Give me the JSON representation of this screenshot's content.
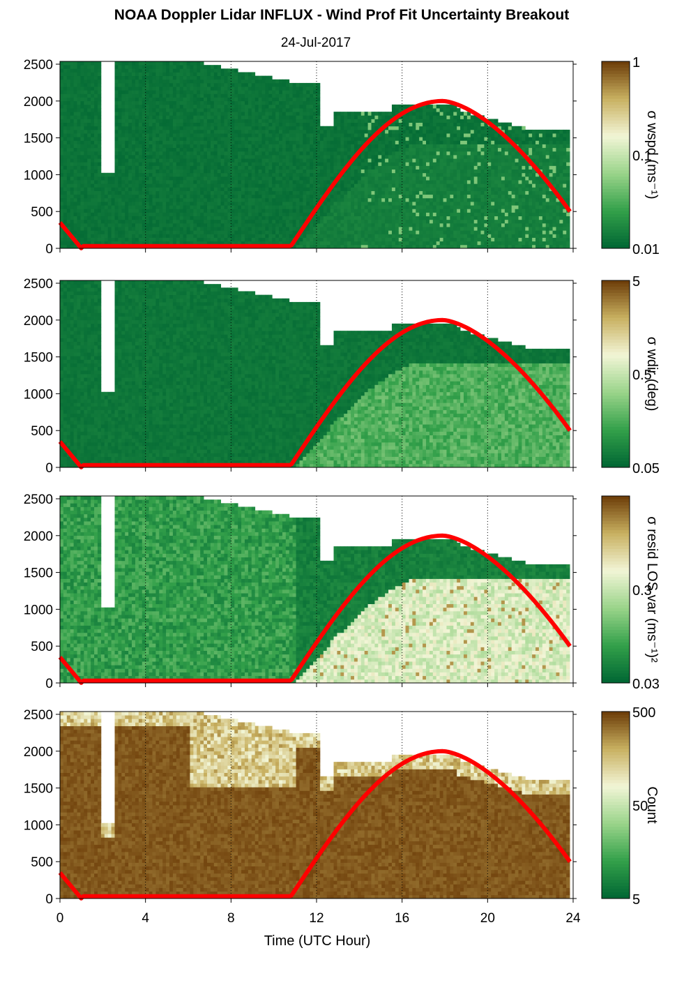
{
  "title": "NOAA Doppler Lidar INFLUX - Wind Prof Fit Uncertainty Breakout",
  "subtitle": "24-Jul-2017",
  "colors": {
    "dark_green": "#006633",
    "mid_green": "#33a04a",
    "light_green": "#9ad48a",
    "pale": "#f2f5d6",
    "tan": "#c8b060",
    "brown": "#6b3b07",
    "sun_curve": "#ff0000",
    "missing": "#ffffff"
  },
  "chart_data": [
    {
      "type": "heatmap",
      "panel": "wspd",
      "x_range": [
        0,
        24
      ],
      "y_range": [
        0,
        2500
      ],
      "y_ticks": [
        "0",
        "500",
        "1000",
        "1500",
        "2000",
        "2500"
      ],
      "x_grid_hours": [
        4,
        8,
        12,
        16,
        20,
        24
      ],
      "colorbar": {
        "label": "σ wspd (ms⁻¹)",
        "ticks": [
          "1",
          "0.1",
          "0.01"
        ],
        "scale": "log"
      },
      "overlay_series": {
        "peak_hour": 17.9,
        "peak_height": 2000
      }
    },
    {
      "type": "heatmap",
      "panel": "wdir",
      "x_range": [
        0,
        24
      ],
      "y_range": [
        0,
        2500
      ],
      "y_ticks": [
        "0",
        "500",
        "1000",
        "1500",
        "2000",
        "2500"
      ],
      "x_grid_hours": [
        4,
        8,
        12,
        16,
        20,
        24
      ],
      "colorbar": {
        "label": "σ wdir (deg)",
        "ticks": [
          "5",
          "0.5",
          "0.05"
        ],
        "scale": "log"
      },
      "overlay_series": {
        "peak_hour": 17.9,
        "peak_height": 2000
      }
    },
    {
      "type": "heatmap",
      "panel": "resid",
      "x_range": [
        0,
        24
      ],
      "y_range": [
        0,
        2500
      ],
      "y_ticks": [
        "0",
        "500",
        "1000",
        "1500",
        "2000",
        "2500"
      ],
      "x_grid_hours": [
        4,
        8,
        12,
        16,
        20,
        24
      ],
      "colorbar": {
        "label": "σ resid LOS var (ms⁻¹)²",
        "ticks": [
          "",
          "0.3",
          "0.03"
        ],
        "scale": "log"
      },
      "overlay_series": {
        "peak_hour": 17.9,
        "peak_height": 2000
      }
    },
    {
      "type": "heatmap",
      "panel": "count",
      "x_range": [
        0,
        24
      ],
      "y_range": [
        0,
        2500
      ],
      "y_ticks": [
        "0",
        "500",
        "1000",
        "1500",
        "2000",
        "2500"
      ],
      "x_grid_hours": [
        4,
        8,
        12,
        16,
        20,
        24
      ],
      "colorbar": {
        "label": "Count",
        "ticks": [
          "500",
          "50",
          "5"
        ],
        "scale": "log"
      },
      "overlay_series": {
        "peak_hour": 17.9,
        "peak_height": 2000
      }
    }
  ],
  "x_axis": {
    "label": "Time (UTC Hour)",
    "ticks": [
      "0",
      "4",
      "8",
      "12",
      "16",
      "20",
      "24"
    ]
  }
}
